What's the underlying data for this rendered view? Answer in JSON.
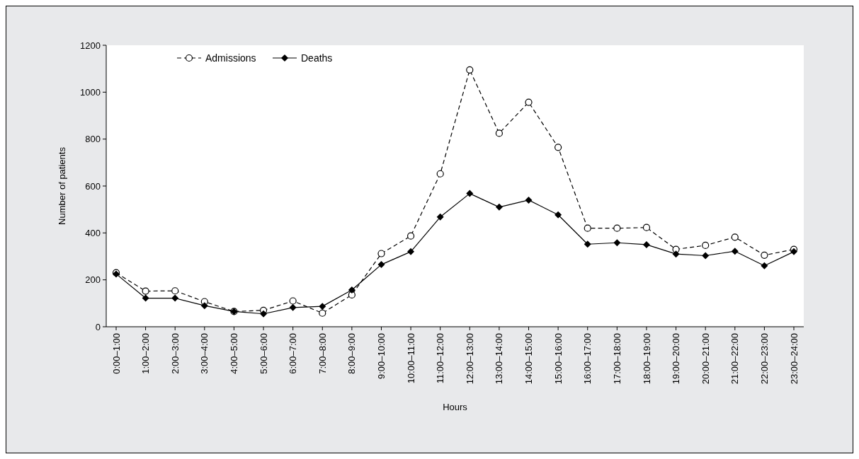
{
  "chart_data": {
    "type": "line",
    "xlabel": "Hours",
    "ylabel": "Number of patients",
    "categories": [
      "0:00–1:00",
      "1:00–2:00",
      "2:00–3:00",
      "3:00–4:00",
      "4:00–5:00",
      "5:00–6:00",
      "6:00–7:00",
      "7:00–8:00",
      "8:00–9:00",
      "9:00–10:00",
      "10:00–11:00",
      "11:00–12:00",
      "12:00–13:00",
      "13:00–14:00",
      "14:00–15:00",
      "15:00–16:00",
      "16:00–17:00",
      "17:00–18:00",
      "18:00–19:00",
      "19:00–20:00",
      "20:00–21:00",
      "21:00–22:00",
      "22:00–23:00",
      "23:00–24:00"
    ],
    "series": [
      {
        "name": "Admissions",
        "color": "#000000",
        "marker": "circle",
        "line_style": "dashed",
        "values": [
          230,
          152,
          153,
          107,
          65,
          70,
          110,
          58,
          136,
          312,
          387,
          652,
          1095,
          825,
          957,
          765,
          420,
          420,
          423,
          330,
          347,
          382,
          305,
          330
        ]
      },
      {
        "name": "Deaths",
        "color": "#000000",
        "marker": "diamond",
        "line_style": "solid",
        "values": [
          225,
          122,
          122,
          90,
          65,
          55,
          82,
          87,
          157,
          265,
          320,
          468,
          568,
          510,
          540,
          477,
          352,
          358,
          350,
          310,
          303,
          322,
          260,
          320
        ]
      }
    ],
    "ylim": [
      0,
      1200
    ],
    "yticks": [
      0,
      200,
      400,
      600,
      800,
      1000,
      1200
    ],
    "grid": false,
    "legend": "top left"
  }
}
